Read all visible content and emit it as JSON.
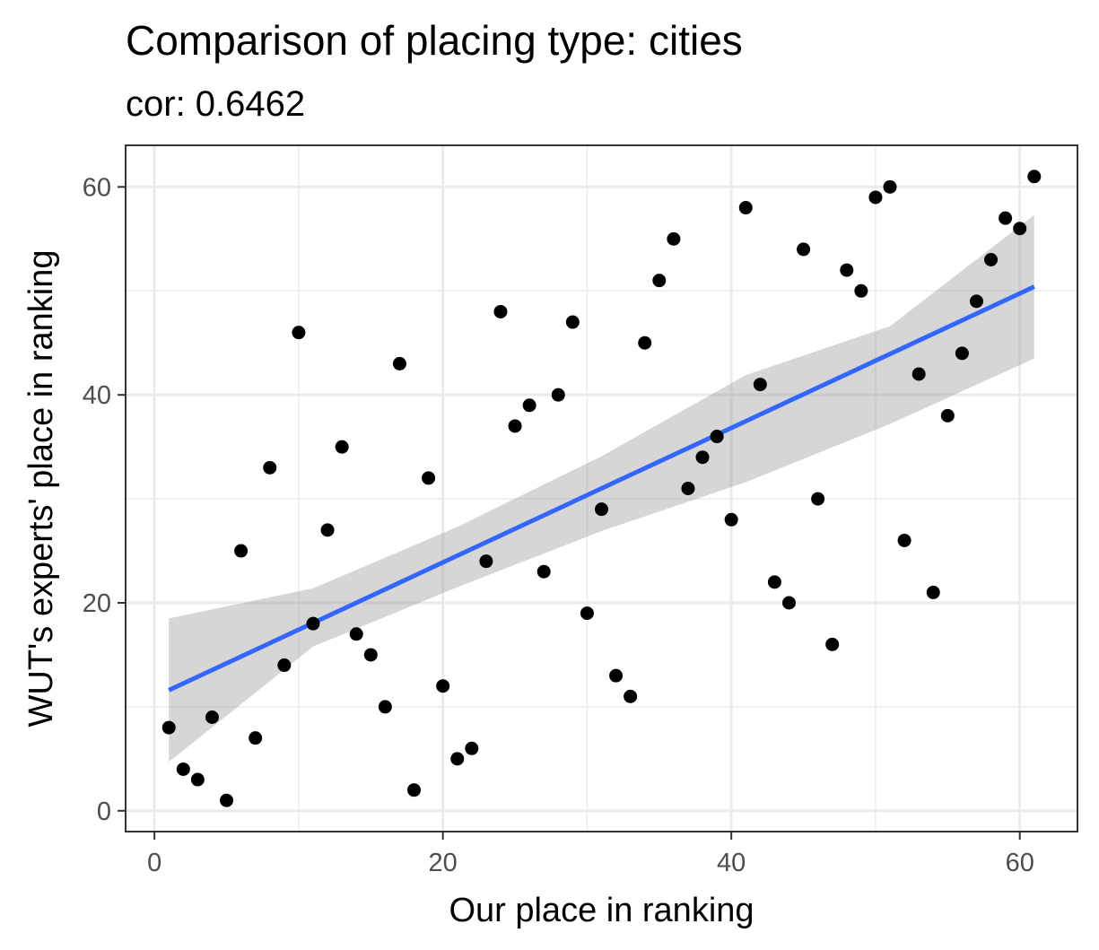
{
  "chart_data": {
    "type": "scatter",
    "title": "Comparison of placing type: cities",
    "subtitle": "cor: 0.6462",
    "xlabel": "Our place in ranking",
    "ylabel": "WUT's experts' place in ranking",
    "xlim": [
      -2,
      64
    ],
    "ylim": [
      -2,
      64
    ],
    "xticks": [
      0,
      20,
      40,
      60
    ],
    "yticks": [
      0,
      20,
      40,
      60
    ],
    "grid": true,
    "points": [
      [
        1,
        8
      ],
      [
        2,
        4
      ],
      [
        3,
        3
      ],
      [
        4,
        9
      ],
      [
        5,
        1
      ],
      [
        6,
        25
      ],
      [
        7,
        7
      ],
      [
        8,
        33
      ],
      [
        9,
        14
      ],
      [
        10,
        46
      ],
      [
        11,
        18
      ],
      [
        12,
        27
      ],
      [
        13,
        35
      ],
      [
        14,
        17
      ],
      [
        15,
        15
      ],
      [
        16,
        10
      ],
      [
        17,
        43
      ],
      [
        18,
        2
      ],
      [
        19,
        32
      ],
      [
        20,
        12
      ],
      [
        21,
        5
      ],
      [
        22,
        6
      ],
      [
        23,
        24
      ],
      [
        24,
        48
      ],
      [
        25,
        37
      ],
      [
        26,
        39
      ],
      [
        27,
        23
      ],
      [
        28,
        40
      ],
      [
        29,
        47
      ],
      [
        30,
        19
      ],
      [
        31,
        29
      ],
      [
        32,
        13
      ],
      [
        33,
        11
      ],
      [
        34,
        45
      ],
      [
        35,
        51
      ],
      [
        36,
        55
      ],
      [
        37,
        31
      ],
      [
        38,
        34
      ],
      [
        39,
        36
      ],
      [
        40,
        28
      ],
      [
        41,
        58
      ],
      [
        42,
        41
      ],
      [
        43,
        22
      ],
      [
        44,
        20
      ],
      [
        45,
        54
      ],
      [
        46,
        30
      ],
      [
        47,
        16
      ],
      [
        48,
        52
      ],
      [
        49,
        50
      ],
      [
        50,
        59
      ],
      [
        51,
        60
      ],
      [
        52,
        26
      ],
      [
        53,
        42
      ],
      [
        54,
        21
      ],
      [
        55,
        38
      ],
      [
        56,
        44
      ],
      [
        57,
        49
      ],
      [
        58,
        53
      ],
      [
        59,
        57
      ],
      [
        60,
        56
      ],
      [
        61,
        61
      ]
    ],
    "trend_line": {
      "x": [
        1,
        61
      ],
      "y": [
        11.6,
        50.4
      ],
      "color": "#3366ff"
    },
    "confidence_band": {
      "x": [
        1,
        11,
        21,
        31,
        41,
        51,
        61
      ],
      "lower": [
        4.7,
        15.8,
        21.5,
        26.9,
        31.6,
        37.2,
        43.5
      ],
      "upper": [
        18.5,
        21.4,
        27.3,
        34.1,
        41.9,
        46.6,
        57.3
      ],
      "color": "#999999"
    },
    "colors": {
      "points": "#000000",
      "panel_border": "#333333",
      "grid": "#ebebeb"
    }
  }
}
